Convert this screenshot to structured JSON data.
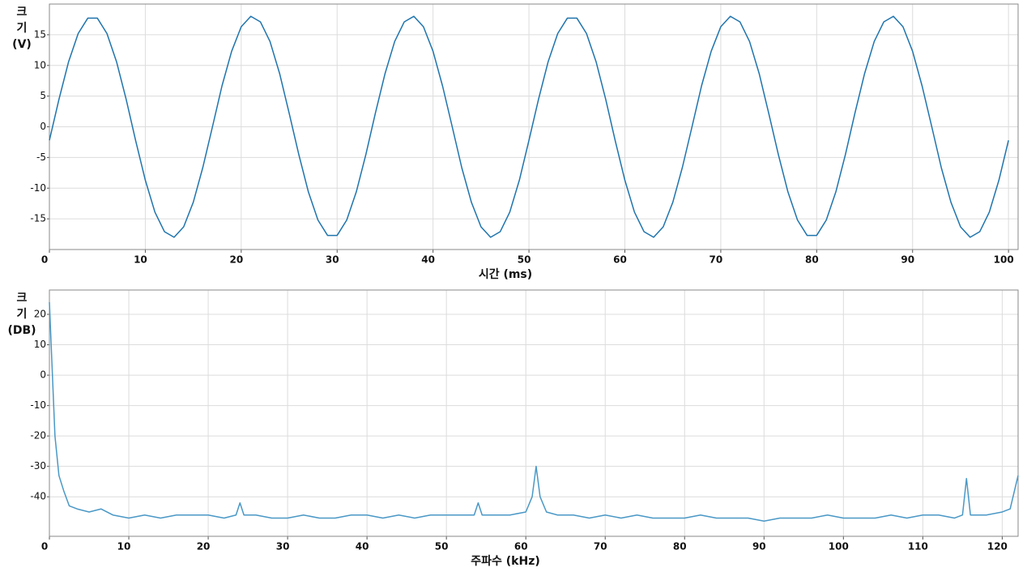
{
  "chart_data": [
    {
      "type": "line",
      "x_label": "시간 (ms)",
      "y_label": [
        "크",
        "기",
        "(V)"
      ],
      "xlim": [
        0,
        101
      ],
      "ylim": [
        -20,
        20
      ],
      "xticks": [
        0,
        10,
        20,
        30,
        40,
        50,
        60,
        70,
        80,
        90,
        100
      ],
      "yticks": [
        -15,
        -10,
        -5,
        0,
        5,
        10,
        15
      ],
      "grid": true,
      "x": [
        0,
        1,
        2,
        3,
        4,
        5,
        6,
        7,
        8,
        9,
        10,
        11,
        12,
        13,
        14,
        15,
        16,
        17,
        18,
        19,
        20,
        21,
        22,
        23,
        24,
        25,
        26,
        27,
        28,
        29,
        30,
        31,
        32,
        33,
        34,
        35,
        36,
        37,
        38,
        39,
        40,
        41,
        42,
        43,
        44,
        45,
        46,
        47,
        48,
        49,
        50,
        51,
        52,
        53,
        54,
        55,
        56,
        57,
        58,
        59,
        60,
        61,
        62,
        63,
        64,
        65,
        66,
        67,
        68,
        69,
        70,
        71,
        72,
        73,
        74,
        75,
        76,
        77,
        78,
        79,
        80,
        81,
        82,
        83,
        84,
        85,
        86,
        87,
        88,
        89,
        90,
        91,
        92,
        93,
        94,
        95,
        96,
        97,
        98,
        99,
        100
      ],
      "series": [
        {
          "color": "#1f74ad",
          "values": [
            -2.2,
            4.5,
            10.6,
            15.2,
            17.7,
            17.7,
            15.2,
            10.6,
            4.5,
            -2.3,
            -8.7,
            -13.9,
            -17.1,
            -18.0,
            -16.3,
            -12.3,
            -6.6,
            0.0,
            6.7,
            12.3,
            16.3,
            18.0,
            17.1,
            13.9,
            8.7,
            2.2,
            -4.5,
            -10.6,
            -15.2,
            -17.7,
            -17.7,
            -15.2,
            -10.6,
            -4.5,
            2.3,
            8.7,
            13.9,
            17.1,
            18.0,
            16.3,
            12.3,
            6.6,
            0.0,
            -6.7,
            -12.3,
            -16.3,
            -18.0,
            -17.1,
            -13.9,
            -8.7,
            -2.2,
            4.5,
            10.6,
            15.2,
            17.7,
            17.7,
            15.2,
            10.6,
            4.5,
            -2.3,
            -8.7,
            -13.9,
            -17.1,
            -18.0,
            -16.3,
            -12.3,
            -6.6,
            0.0,
            6.7,
            12.3,
            16.3,
            18.0,
            17.1,
            13.9,
            8.7,
            2.2,
            -4.5,
            -10.6,
            -15.2,
            -17.7,
            -17.7,
            -15.2,
            -10.6,
            -4.5,
            2.3,
            8.7,
            13.9,
            17.1,
            18.0,
            16.3,
            12.3,
            6.6,
            0.0,
            -6.7,
            -12.3,
            -16.3,
            -18.0,
            -17.1,
            -13.9,
            -8.7,
            -2.2
          ]
        }
      ]
    },
    {
      "type": "line",
      "x_label": "주파수 (kHz)",
      "y_label": [
        "크",
        "기",
        "(DB)"
      ],
      "xlim": [
        0,
        122
      ],
      "ylim": [
        -53,
        28
      ],
      "xticks": [
        0,
        10,
        20,
        30,
        40,
        50,
        60,
        70,
        80,
        90,
        100,
        110,
        120
      ],
      "yticks": [
        -40,
        -30,
        -20,
        -10,
        0,
        10,
        20
      ],
      "grid": true,
      "x": [
        0,
        0.3,
        0.7,
        1.2,
        1.8,
        2.5,
        3.5,
        5,
        6.5,
        8,
        10,
        12,
        14,
        16,
        18,
        20,
        22,
        23.5,
        24,
        24.5,
        26,
        28,
        30,
        32,
        34,
        36,
        38,
        40,
        42,
        44,
        46,
        48,
        50,
        52,
        53.5,
        54,
        54.5,
        56,
        58,
        60,
        60.8,
        61.3,
        61.8,
        62.6,
        64,
        66,
        68,
        70,
        72,
        74,
        76,
        78,
        80,
        82,
        84,
        86,
        88,
        90,
        92,
        94,
        96,
        98,
        100,
        102,
        104,
        106,
        108,
        110,
        112,
        114,
        115,
        115.5,
        116,
        118,
        120,
        121,
        122
      ],
      "series": [
        {
          "color": "#4a98c6",
          "values": [
            24,
            5,
            -20,
            -33,
            -38,
            -43,
            -44,
            -45,
            -44,
            -46,
            -47,
            -46,
            -47,
            -46,
            -46,
            -46,
            -47,
            -46,
            -42,
            -46,
            -46,
            -47,
            -47,
            -46,
            -47,
            -47,
            -46,
            -46,
            -47,
            -46,
            -47,
            -46,
            -46,
            -46,
            -46,
            -42,
            -46,
            -46,
            -46,
            -45,
            -40,
            -30,
            -40,
            -45,
            -46,
            -46,
            -47,
            -46,
            -47,
            -46,
            -47,
            -47,
            -47,
            -46,
            -47,
            -47,
            -47,
            -48,
            -47,
            -47,
            -47,
            -46,
            -47,
            -47,
            -47,
            -46,
            -47,
            -46,
            -46,
            -47,
            -46,
            -34,
            -46,
            -46,
            -45,
            -44,
            -33
          ]
        }
      ]
    }
  ]
}
